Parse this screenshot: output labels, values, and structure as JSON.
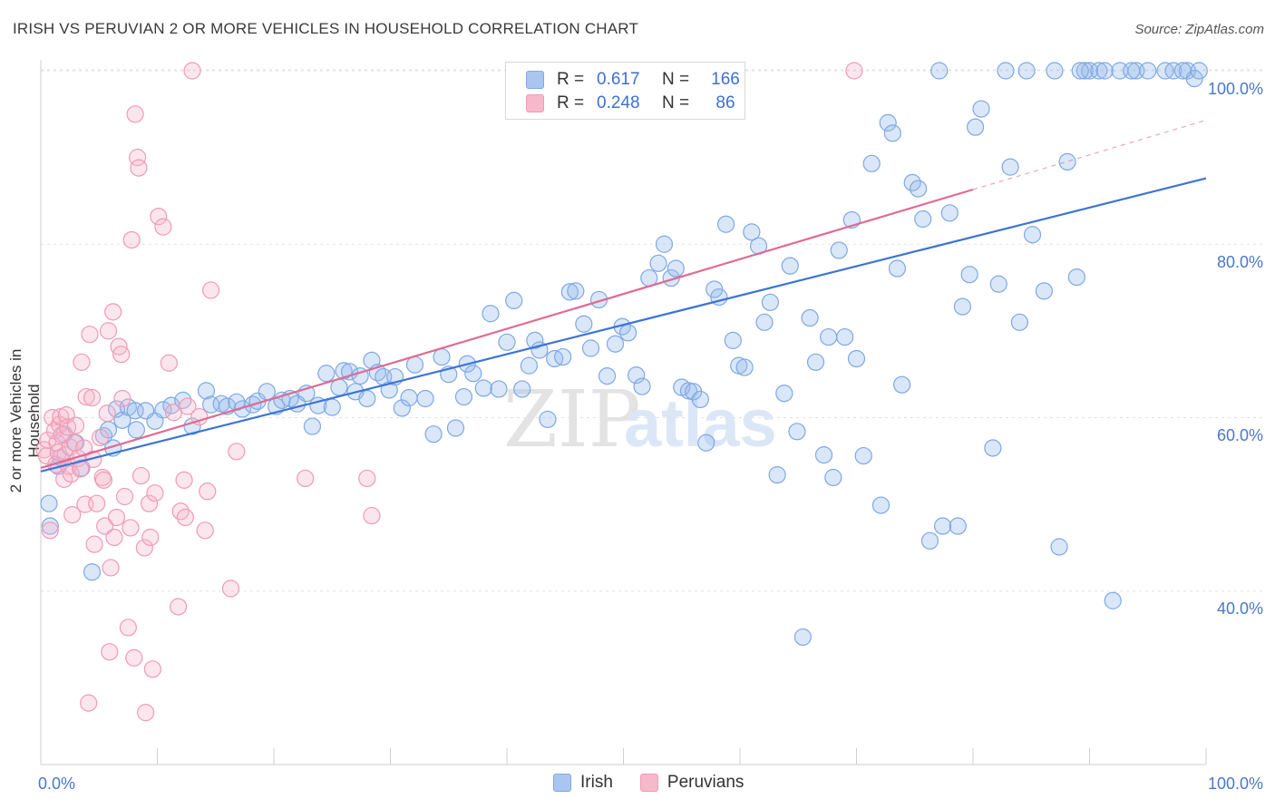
{
  "title": "IRISH VS PERUVIAN 2 OR MORE VEHICLES IN HOUSEHOLD CORRELATION CHART",
  "source": "Source: ZipAtlas.com",
  "watermark": {
    "part1": "ZIP",
    "part2": "atlas"
  },
  "legend": {
    "rows": [
      {
        "r_label": "R =",
        "r_value": "0.617",
        "n_label": "N =",
        "n_value": "166",
        "fill": "#aac6ee",
        "stroke": "#7ea8e4"
      },
      {
        "r_label": "R =",
        "r_value": "0.248",
        "n_label": "N =",
        "n_value": "86",
        "fill": "#f7b8cb",
        "stroke": "#f09ab5"
      }
    ]
  },
  "bottom_legend": [
    "Irish",
    "Peruvians"
  ],
  "chart_data": {
    "type": "scatter",
    "xlabel": "",
    "ylabel": "2 or more Vehicles in Household",
    "xlim": [
      0,
      100
    ],
    "ylim": [
      20,
      100
    ],
    "x_tick_labels": [
      "0.0%",
      "100.0%"
    ],
    "y_tick_labels": [
      "40.0%",
      "60.0%",
      "80.0%",
      "100.0%"
    ],
    "y_ticks": [
      40,
      60,
      80,
      100
    ],
    "grid": true,
    "series": [
      {
        "name": "Irish",
        "color": "#3d74d6",
        "fill": "rgba(150,185,235,0.35)",
        "stroke": "#7ea8e4",
        "trend": {
          "x": [
            0,
            100
          ],
          "y": [
            53.8,
            87.6
          ],
          "dashed_from": null
        },
        "points": [
          [
            0.7,
            50.1
          ],
          [
            0.8,
            47.5
          ],
          [
            1.5,
            54.4
          ],
          [
            1.7,
            55.4
          ],
          [
            2.0,
            58.1
          ],
          [
            3.0,
            57.1
          ],
          [
            3.5,
            54.2
          ],
          [
            4.4,
            42.2
          ],
          [
            5.4,
            57.9
          ],
          [
            5.8,
            58.6
          ],
          [
            6.2,
            56.5
          ],
          [
            6.5,
            61.0
          ],
          [
            7.0,
            59.7
          ],
          [
            7.5,
            61.2
          ],
          [
            8.1,
            60.8
          ],
          [
            8.2,
            58.6
          ],
          [
            9.0,
            60.8
          ],
          [
            9.8,
            59.6
          ],
          [
            10.5,
            60.9
          ],
          [
            11.2,
            61.4
          ],
          [
            12.2,
            62.0
          ],
          [
            13.0,
            59.0
          ],
          [
            14.2,
            63.1
          ],
          [
            14.6,
            61.5
          ],
          [
            15.5,
            61.6
          ],
          [
            16.0,
            61.3
          ],
          [
            16.8,
            61.8
          ],
          [
            17.3,
            61.0
          ],
          [
            18.2,
            61.5
          ],
          [
            18.6,
            61.9
          ],
          [
            19.4,
            63.0
          ],
          [
            20.2,
            61.3
          ],
          [
            20.7,
            62.0
          ],
          [
            21.4,
            62.2
          ],
          [
            22.0,
            61.6
          ],
          [
            22.8,
            62.8
          ],
          [
            23.3,
            59.0
          ],
          [
            23.8,
            61.4
          ],
          [
            24.5,
            65.1
          ],
          [
            25.0,
            61.2
          ],
          [
            25.6,
            63.5
          ],
          [
            26.0,
            65.4
          ],
          [
            26.5,
            65.3
          ],
          [
            27.0,
            63.0
          ],
          [
            27.4,
            64.8
          ],
          [
            28.0,
            62.2
          ],
          [
            28.4,
            66.6
          ],
          [
            28.9,
            65.2
          ],
          [
            29.4,
            64.7
          ],
          [
            29.9,
            63.2
          ],
          [
            30.4,
            64.7
          ],
          [
            31.0,
            61.1
          ],
          [
            31.6,
            62.3
          ],
          [
            32.1,
            66.1
          ],
          [
            33.0,
            62.2
          ],
          [
            33.7,
            58.1
          ],
          [
            34.4,
            67.0
          ],
          [
            35.0,
            65.0
          ],
          [
            35.6,
            58.8
          ],
          [
            36.3,
            62.4
          ],
          [
            36.6,
            66.2
          ],
          [
            37.1,
            65.1
          ],
          [
            38.0,
            63.4
          ],
          [
            38.6,
            72.0
          ],
          [
            39.3,
            63.3
          ],
          [
            40.0,
            68.7
          ],
          [
            40.6,
            73.5
          ],
          [
            41.3,
            63.3
          ],
          [
            41.9,
            66.0
          ],
          [
            42.4,
            68.9
          ],
          [
            42.8,
            67.8
          ],
          [
            43.5,
            59.8
          ],
          [
            44.1,
            66.8
          ],
          [
            44.8,
            67.0
          ],
          [
            45.4,
            74.5
          ],
          [
            45.9,
            74.6
          ],
          [
            46.6,
            70.8
          ],
          [
            47.2,
            68.0
          ],
          [
            47.9,
            73.6
          ],
          [
            48.6,
            64.8
          ],
          [
            49.3,
            68.5
          ],
          [
            49.9,
            70.5
          ],
          [
            50.4,
            69.8
          ],
          [
            51.1,
            64.9
          ],
          [
            51.6,
            63.6
          ],
          [
            52.2,
            76.1
          ],
          [
            53.0,
            77.8
          ],
          [
            53.5,
            80.0
          ],
          [
            54.1,
            76.1
          ],
          [
            54.5,
            77.2
          ],
          [
            55.0,
            63.5
          ],
          [
            55.6,
            63.1
          ],
          [
            56.0,
            63.0
          ],
          [
            56.6,
            62.1
          ],
          [
            57.1,
            57.1
          ],
          [
            57.8,
            74.8
          ],
          [
            58.2,
            73.9
          ],
          [
            58.8,
            82.3
          ],
          [
            59.4,
            68.9
          ],
          [
            59.9,
            66.0
          ],
          [
            60.4,
            65.8
          ],
          [
            61.0,
            81.4
          ],
          [
            61.6,
            79.8
          ],
          [
            62.1,
            71.0
          ],
          [
            62.6,
            73.3
          ],
          [
            63.2,
            53.4
          ],
          [
            63.8,
            62.8
          ],
          [
            64.3,
            77.5
          ],
          [
            64.9,
            58.4
          ],
          [
            65.4,
            34.7
          ],
          [
            66.0,
            71.5
          ],
          [
            66.5,
            66.4
          ],
          [
            67.2,
            55.7
          ],
          [
            67.6,
            69.3
          ],
          [
            68.0,
            53.1
          ],
          [
            68.5,
            79.3
          ],
          [
            69.0,
            69.3
          ],
          [
            69.6,
            82.8
          ],
          [
            70.0,
            66.8
          ],
          [
            70.6,
            55.6
          ],
          [
            71.3,
            89.3
          ],
          [
            72.1,
            49.9
          ],
          [
            72.7,
            94.0
          ],
          [
            73.1,
            92.8
          ],
          [
            73.5,
            77.2
          ],
          [
            73.9,
            63.8
          ],
          [
            74.8,
            87.1
          ],
          [
            75.3,
            86.4
          ],
          [
            75.7,
            82.9
          ],
          [
            76.3,
            45.8
          ],
          [
            77.1,
            100.0
          ],
          [
            77.4,
            47.5
          ],
          [
            78.0,
            83.6
          ],
          [
            78.7,
            47.5
          ],
          [
            79.1,
            72.8
          ],
          [
            79.7,
            76.5
          ],
          [
            80.2,
            93.5
          ],
          [
            80.7,
            95.6
          ],
          [
            81.7,
            56.5
          ],
          [
            82.2,
            75.4
          ],
          [
            82.8,
            100.0
          ],
          [
            83.2,
            88.9
          ],
          [
            84.0,
            71.0
          ],
          [
            84.6,
            100.0
          ],
          [
            85.1,
            81.1
          ],
          [
            86.1,
            74.6
          ],
          [
            87.0,
            100.0
          ],
          [
            87.4,
            45.1
          ],
          [
            88.1,
            89.5
          ],
          [
            88.9,
            76.2
          ],
          [
            89.6,
            100.0
          ],
          [
            90.0,
            100.0
          ],
          [
            90.8,
            100.0
          ],
          [
            91.3,
            100.0
          ],
          [
            92.0,
            38.9
          ],
          [
            92.6,
            100.0
          ],
          [
            94.0,
            100.0
          ],
          [
            95.0,
            100.0
          ],
          [
            96.5,
            100.0
          ],
          [
            97.2,
            100.0
          ],
          [
            98.4,
            100.0
          ],
          [
            99.0,
            99.1
          ],
          [
            99.4,
            100.0
          ],
          [
            98.0,
            100.0
          ],
          [
            93.6,
            100.0
          ],
          [
            89.2,
            100.0
          ]
        ]
      },
      {
        "name": "Peruvians",
        "color": "#e06a92",
        "fill": "rgba(247,184,203,0.35)",
        "stroke": "#f09ab5",
        "trend": {
          "x": [
            0,
            80
          ],
          "y": [
            54.2,
            86.3
          ],
          "dashed_from": 80,
          "dashed_to": [
            100,
            94.3
          ]
        },
        "points": [
          [
            0.3,
            56.3
          ],
          [
            0.5,
            55.6
          ],
          [
            0.6,
            57.4
          ],
          [
            0.8,
            47.0
          ],
          [
            1.0,
            60.0
          ],
          [
            1.2,
            58.5
          ],
          [
            1.3,
            54.6
          ],
          [
            1.4,
            57.1
          ],
          [
            1.5,
            56.0
          ],
          [
            1.6,
            59.2
          ],
          [
            1.7,
            60.1
          ],
          [
            1.8,
            58.0
          ],
          [
            2.0,
            52.9
          ],
          [
            2.1,
            55.7
          ],
          [
            2.2,
            60.3
          ],
          [
            2.3,
            58.9
          ],
          [
            2.4,
            54.4
          ],
          [
            2.5,
            56.6
          ],
          [
            2.6,
            53.5
          ],
          [
            2.7,
            48.8
          ],
          [
            2.9,
            57.1
          ],
          [
            3.0,
            59.1
          ],
          [
            3.2,
            55.3
          ],
          [
            3.4,
            54.1
          ],
          [
            3.5,
            66.4
          ],
          [
            3.7,
            56.5
          ],
          [
            3.8,
            50.0
          ],
          [
            3.9,
            62.4
          ],
          [
            4.1,
            27.1
          ],
          [
            4.2,
            69.6
          ],
          [
            4.4,
            62.3
          ],
          [
            4.5,
            55.2
          ],
          [
            4.6,
            45.4
          ],
          [
            4.8,
            50.1
          ],
          [
            5.1,
            57.7
          ],
          [
            5.3,
            53.1
          ],
          [
            5.4,
            52.8
          ],
          [
            5.5,
            47.5
          ],
          [
            5.7,
            60.5
          ],
          [
            5.8,
            70.0
          ],
          [
            5.9,
            33.0
          ],
          [
            6.0,
            42.7
          ],
          [
            6.2,
            72.2
          ],
          [
            6.3,
            46.2
          ],
          [
            6.5,
            48.5
          ],
          [
            6.7,
            68.2
          ],
          [
            6.9,
            67.3
          ],
          [
            7.0,
            62.2
          ],
          [
            7.2,
            50.9
          ],
          [
            7.5,
            35.8
          ],
          [
            7.7,
            47.3
          ],
          [
            7.8,
            80.5
          ],
          [
            8.0,
            32.3
          ],
          [
            8.1,
            95.0
          ],
          [
            8.3,
            90.0
          ],
          [
            8.4,
            88.8
          ],
          [
            8.6,
            53.3
          ],
          [
            8.9,
            45.0
          ],
          [
            9.0,
            26.0
          ],
          [
            9.3,
            50.1
          ],
          [
            9.4,
            46.2
          ],
          [
            9.6,
            31.0
          ],
          [
            9.8,
            51.3
          ],
          [
            10.1,
            83.2
          ],
          [
            10.5,
            82.0
          ],
          [
            11.0,
            66.3
          ],
          [
            11.4,
            60.6
          ],
          [
            11.8,
            38.2
          ],
          [
            12.0,
            49.2
          ],
          [
            12.3,
            52.8
          ],
          [
            12.4,
            48.5
          ],
          [
            12.6,
            61.3
          ],
          [
            13.0,
            100.0
          ],
          [
            13.6,
            60.1
          ],
          [
            14.1,
            47.0
          ],
          [
            14.3,
            51.5
          ],
          [
            14.6,
            74.7
          ],
          [
            16.3,
            40.3
          ],
          [
            16.8,
            56.1
          ],
          [
            22.7,
            53.0
          ],
          [
            28.0,
            53.0
          ],
          [
            28.4,
            48.7
          ],
          [
            69.8,
            100.0
          ]
        ]
      }
    ]
  }
}
